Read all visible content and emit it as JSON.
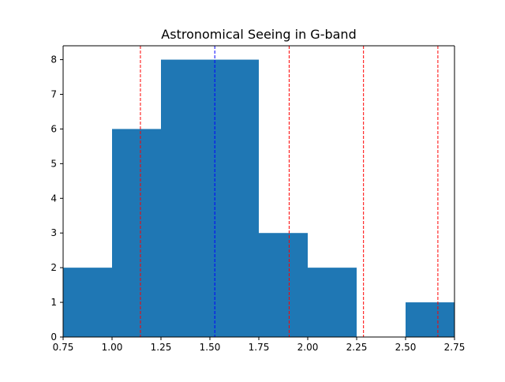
{
  "chart_data": {
    "type": "bar",
    "title": "Astronomical Seeing in G-band",
    "xlabel": "",
    "ylabel": "",
    "xlim": [
      0.75,
      2.75
    ],
    "ylim": [
      0,
      8.4
    ],
    "bins": [
      {
        "x0": 0.75,
        "x1": 1.0,
        "count": 2
      },
      {
        "x0": 1.0,
        "x1": 1.25,
        "count": 6
      },
      {
        "x0": 1.25,
        "x1": 1.5,
        "count": 8
      },
      {
        "x0": 1.5,
        "x1": 1.75,
        "count": 8
      },
      {
        "x0": 1.75,
        "x1": 2.0,
        "count": 3
      },
      {
        "x0": 2.0,
        "x1": 2.25,
        "count": 2
      },
      {
        "x0": 2.25,
        "x1": 2.5,
        "count": 0
      },
      {
        "x0": 2.5,
        "x1": 2.75,
        "count": 1
      }
    ],
    "vertical_lines": [
      {
        "x": 1.145,
        "color": "#ff0000",
        "style": "dashed"
      },
      {
        "x": 1.525,
        "color": "#0000ff",
        "style": "dashed"
      },
      {
        "x": 1.905,
        "color": "#ff0000",
        "style": "dashed"
      },
      {
        "x": 2.285,
        "color": "#ff0000",
        "style": "dashed"
      },
      {
        "x": 2.665,
        "color": "#ff0000",
        "style": "dashed"
      }
    ],
    "x_ticks": [
      {
        "value": 0.75,
        "label": "0.75"
      },
      {
        "value": 1.0,
        "label": "1.00"
      },
      {
        "value": 1.25,
        "label": "1.25"
      },
      {
        "value": 1.5,
        "label": "1.50"
      },
      {
        "value": 1.75,
        "label": "1.75"
      },
      {
        "value": 2.0,
        "label": "2.00"
      },
      {
        "value": 2.25,
        "label": "2.25"
      },
      {
        "value": 2.5,
        "label": "2.50"
      },
      {
        "value": 2.75,
        "label": "2.75"
      }
    ],
    "y_ticks": [
      {
        "value": 0,
        "label": "0"
      },
      {
        "value": 1,
        "label": "1"
      },
      {
        "value": 2,
        "label": "2"
      },
      {
        "value": 3,
        "label": "3"
      },
      {
        "value": 4,
        "label": "4"
      },
      {
        "value": 5,
        "label": "5"
      },
      {
        "value": 6,
        "label": "6"
      },
      {
        "value": 7,
        "label": "7"
      },
      {
        "value": 8,
        "label": "8"
      }
    ],
    "colors": {
      "bar": "#1f77b4",
      "axis": "#000000"
    },
    "grid": false,
    "legend": "none"
  }
}
